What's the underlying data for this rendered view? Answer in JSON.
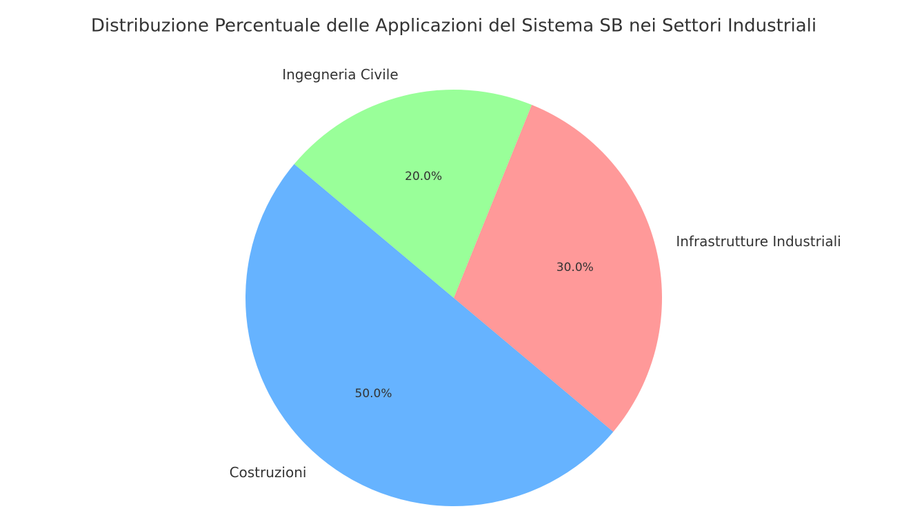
{
  "chart_data": {
    "type": "pie",
    "title": "Distribuzione Percentuale delle Applicazioni del Sistema SB nei Settori Industriali",
    "categories": [
      "Costruzioni",
      "Infrastrutture Industriali",
      "Ingegneria Civile"
    ],
    "values": [
      50,
      30,
      20
    ],
    "value_labels": [
      "50.0%",
      "30.0%",
      "20.0%"
    ],
    "colors": [
      "#66b3ff",
      "#ff9999",
      "#99ff99"
    ]
  }
}
